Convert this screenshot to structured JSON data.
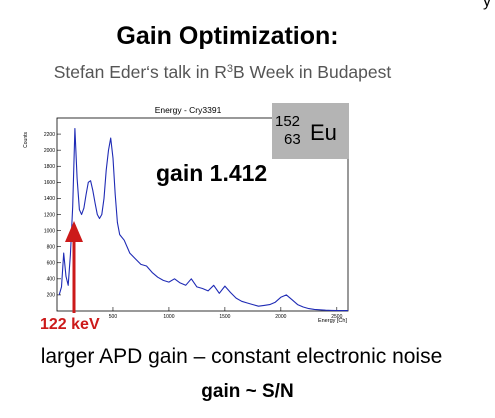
{
  "slide": {
    "corner_mark": "y",
    "title": "Gain Optimization:",
    "subtitle_before": "Stefan Eder‘s talk in R",
    "subtitle_sup": "3",
    "subtitle_after": "B Week in Budapest",
    "statement": "larger APD gain – constant electronic noise",
    "formula": "gain ~ S/N"
  },
  "figure": {
    "isotope": {
      "mass_number": "152",
      "atomic_number": "63",
      "symbol": "Eu"
    },
    "gain_label": "gain 1.412",
    "line_label": "122 keV",
    "arrow_color": "#cc1a1a",
    "line_color": "#1f2bb5"
  },
  "chart_data": {
    "type": "line",
    "title": "Energy - Cry3391",
    "xlabel": "Energy [Ch]",
    "ylabel": "Counts",
    "xlim": [
      0,
      2600
    ],
    "ylim": [
      0,
      2400
    ],
    "xticks": [
      "500",
      "1000",
      "1500",
      "2000",
      "2500"
    ],
    "yticks": [
      "200",
      "400",
      "600",
      "800",
      "1000",
      "1200",
      "1400",
      "1600",
      "1800",
      "2000",
      "2200"
    ],
    "grid": false,
    "x": [
      20,
      40,
      60,
      80,
      100,
      120,
      140,
      160,
      180,
      200,
      220,
      240,
      260,
      280,
      300,
      320,
      340,
      360,
      380,
      400,
      420,
      440,
      460,
      480,
      500,
      520,
      540,
      560,
      600,
      650,
      700,
      750,
      800,
      850,
      900,
      950,
      1000,
      1050,
      1100,
      1150,
      1200,
      1250,
      1300,
      1350,
      1400,
      1450,
      1500,
      1550,
      1600,
      1650,
      1700,
      1750,
      1800,
      1850,
      1900,
      1950,
      2000,
      2050,
      2100,
      2150,
      2200,
      2250,
      2300,
      2350,
      2400,
      2450,
      2500,
      2550,
      2600
    ],
    "y": [
      200,
      300,
      720,
      430,
      320,
      700,
      1300,
      2270,
      1650,
      1260,
      1200,
      1280,
      1450,
      1600,
      1620,
      1500,
      1340,
      1200,
      1150,
      1200,
      1400,
      1750,
      2000,
      2150,
      1900,
      1450,
      1100,
      950,
      880,
      720,
      650,
      580,
      560,
      480,
      420,
      380,
      360,
      400,
      350,
      320,
      400,
      300,
      280,
      250,
      320,
      220,
      310,
      230,
      160,
      120,
      100,
      80,
      60,
      70,
      80,
      110,
      170,
      200,
      140,
      80,
      50,
      30,
      20,
      15,
      10,
      8,
      5,
      5,
      5
    ]
  }
}
